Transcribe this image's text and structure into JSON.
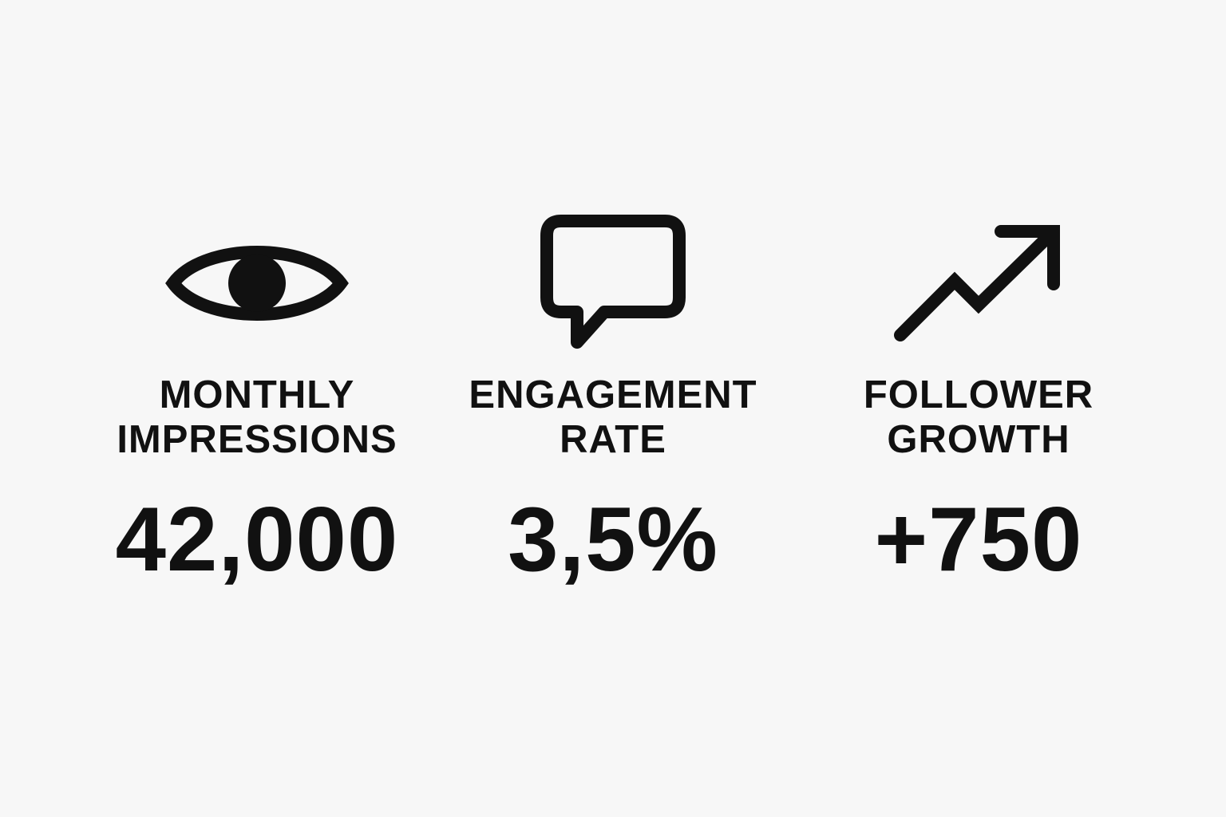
{
  "stats": [
    {
      "icon": "eye-icon",
      "label_line1": "MONTHLY",
      "label_line2": "IMPRESSIONS",
      "value": "42,000"
    },
    {
      "icon": "speech-bubble-icon",
      "label_line1": "ENGAGEMENT",
      "label_line2": "RATE",
      "value": "3,5%"
    },
    {
      "icon": "trending-up-arrow-icon",
      "label_line1": "FOLLOWER",
      "label_line2": "GROWTH",
      "value": "+750"
    }
  ],
  "colors": {
    "background": "#f7f7f7",
    "foreground": "#111111"
  }
}
